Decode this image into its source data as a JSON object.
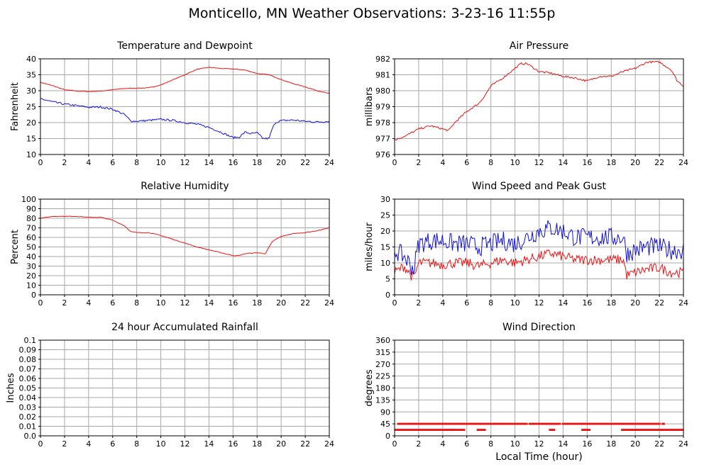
{
  "page": {
    "title": "Monticello, MN Weather Observations: 3-23-16 11:55p"
  },
  "colors": {
    "red": "#ee1111",
    "blue": "#1111dd",
    "grid": "#a8a8a8"
  },
  "chart_data": [
    {
      "id": "temp",
      "type": "line",
      "title": "Temperature and Dewpoint",
      "ylabel": "Fahrenheit",
      "xlabel": "",
      "xlim": [
        0,
        24
      ],
      "ylim": [
        10,
        40
      ],
      "xticks": [
        "0",
        "2",
        "4",
        "6",
        "8",
        "10",
        "12",
        "14",
        "16",
        "18",
        "20",
        "22",
        "24"
      ],
      "yticks": [
        "10",
        "15",
        "20",
        "25",
        "30",
        "35",
        "40"
      ],
      "grid": true,
      "series": [
        {
          "color": "red",
          "noise": 0.1,
          "x": [
            0,
            1,
            2,
            3,
            4,
            5,
            6,
            7,
            8,
            9,
            10,
            11,
            12,
            13,
            14,
            15,
            16,
            17,
            18,
            19,
            20,
            21,
            22,
            23,
            24
          ],
          "y": [
            32.6,
            31.6,
            30.3,
            29.9,
            29.7,
            29.9,
            30.3,
            30.7,
            30.8,
            30.9,
            31.8,
            33.4,
            35.0,
            36.7,
            37.3,
            37.0,
            36.8,
            36.5,
            35.4,
            35.0,
            33.5,
            32.2,
            31.2,
            30.0,
            29.1
          ]
        },
        {
          "color": "blue",
          "noise": 0.3,
          "x": [
            0,
            1,
            2,
            3,
            4,
            5,
            6,
            7,
            7.5,
            8,
            9,
            10,
            11,
            12,
            13,
            14,
            15,
            16,
            16.5,
            17,
            17.5,
            18,
            18.5,
            19,
            19.2,
            19.5,
            20,
            21,
            22,
            23,
            24
          ],
          "y": [
            27.5,
            26.5,
            25.8,
            25.3,
            24.8,
            24.9,
            24.2,
            22.5,
            20.5,
            20.4,
            20.7,
            21.0,
            20.7,
            20.0,
            19.5,
            18.5,
            17.0,
            15.3,
            15.4,
            17.0,
            16.5,
            16.8,
            15.0,
            15.0,
            17.5,
            20.0,
            20.6,
            20.8,
            20.4,
            20.2,
            20.4
          ]
        }
      ]
    },
    {
      "id": "pressure",
      "type": "line",
      "title": "Air Pressure",
      "ylabel": "millibars",
      "xlabel": "",
      "xlim": [
        0,
        24
      ],
      "ylim": [
        976,
        982
      ],
      "xticks": [
        "0",
        "2",
        "4",
        "6",
        "8",
        "10",
        "12",
        "14",
        "16",
        "18",
        "20",
        "22",
        "24"
      ],
      "yticks": [
        "976",
        "977",
        "978",
        "979",
        "980",
        "981",
        "982"
      ],
      "grid": true,
      "series": [
        {
          "color": "red",
          "noise": 0.06,
          "x": [
            0,
            1,
            2,
            3,
            4,
            4.5,
            5,
            6,
            7,
            7.5,
            8,
            9,
            10,
            10.5,
            11,
            12,
            13,
            14,
            15,
            16,
            17,
            18,
            19,
            20,
            21,
            22,
            23,
            23.5,
            24
          ],
          "y": [
            976.9,
            977.2,
            977.6,
            977.8,
            977.6,
            977.5,
            978.0,
            978.7,
            979.2,
            979.7,
            980.3,
            980.8,
            981.4,
            981.7,
            981.7,
            981.2,
            981.1,
            980.9,
            980.8,
            980.6,
            980.9,
            980.9,
            981.2,
            981.4,
            981.8,
            981.8,
            981.3,
            980.6,
            980.3
          ]
        }
      ]
    },
    {
      "id": "humidity",
      "type": "line",
      "title": "Relative Humidity",
      "ylabel": "Percent",
      "xlabel": "",
      "xlim": [
        0,
        24
      ],
      "ylim": [
        0,
        100
      ],
      "xticks": [
        "0",
        "2",
        "4",
        "6",
        "8",
        "10",
        "12",
        "14",
        "16",
        "18",
        "20",
        "22",
        "24"
      ],
      "yticks": [
        "0",
        "10",
        "20",
        "30",
        "40",
        "50",
        "60",
        "70",
        "80",
        "90",
        "100"
      ],
      "grid": true,
      "series": [
        {
          "color": "red",
          "noise": 0.3,
          "x": [
            0,
            1,
            2,
            3,
            4,
            5,
            6,
            7,
            7.5,
            8,
            9,
            10,
            11,
            12,
            13,
            14,
            15,
            16,
            16.5,
            17,
            18,
            18.7,
            19,
            19.3,
            20,
            21,
            22,
            23,
            24
          ],
          "y": [
            80,
            82,
            82,
            82,
            81,
            81,
            78,
            72,
            66,
            65,
            65,
            62,
            58,
            54,
            50,
            47,
            44,
            41,
            41,
            43,
            44,
            43,
            50,
            56,
            61,
            64,
            65,
            67,
            70
          ]
        }
      ]
    },
    {
      "id": "wind",
      "type": "line",
      "title": "Wind Speed and Peak Gust",
      "ylabel": "miles/hour",
      "xlabel": "",
      "xlim": [
        0,
        24
      ],
      "ylim": [
        0,
        30
      ],
      "xticks": [
        "0",
        "2",
        "4",
        "6",
        "8",
        "10",
        "12",
        "14",
        "16",
        "18",
        "20",
        "22",
        "24"
      ],
      "yticks": [
        "0",
        "5",
        "10",
        "15",
        "20",
        "25",
        "30"
      ],
      "grid": true,
      "series": [
        {
          "color": "red",
          "noise": 1.6,
          "x": [
            0,
            0.8,
            1.6,
            2,
            3,
            4,
            5,
            6,
            7,
            8,
            9,
            10,
            11,
            12,
            13,
            14,
            15,
            16,
            17,
            18,
            19,
            19.3,
            20,
            21,
            22,
            23,
            24
          ],
          "y": [
            7,
            9,
            5,
            10,
            10,
            9.5,
            10,
            10,
            9,
            10,
            11,
            10,
            11,
            12,
            13,
            12,
            11,
            11,
            11,
            11,
            11,
            6,
            7,
            8,
            8.5,
            7,
            7
          ]
        },
        {
          "color": "blue",
          "noise": 3.0,
          "x": [
            0,
            0.8,
            1.6,
            2,
            3,
            4,
            5,
            6,
            7,
            8,
            9,
            10,
            11,
            12,
            13,
            14,
            15,
            16,
            17,
            18,
            19,
            19.3,
            20,
            21,
            22,
            23,
            24
          ],
          "y": [
            14,
            12,
            8,
            16,
            17,
            17,
            16,
            16,
            15,
            16,
            17,
            16,
            18,
            20,
            21,
            20,
            18,
            18,
            18,
            18,
            18,
            13,
            14,
            15,
            15,
            14,
            14
          ]
        }
      ]
    },
    {
      "id": "rain",
      "type": "line",
      "title": "24 hour Accumulated Rainfall",
      "ylabel": "Inches",
      "xlabel": "",
      "xlim": [
        0,
        24
      ],
      "ylim": [
        0,
        0.1
      ],
      "xticks": [
        "0",
        "2",
        "4",
        "6",
        "8",
        "10",
        "12",
        "14",
        "16",
        "18",
        "20",
        "22",
        "24"
      ],
      "yticks": [
        "0.0",
        "0.01",
        "0.02",
        "0.03",
        "0.04",
        "0.05",
        "0.06",
        "0.07",
        "0.08",
        "0.09",
        "0.1"
      ],
      "grid": true,
      "series": [
        {
          "color": "red",
          "noise": 0,
          "x": [
            0,
            24
          ],
          "y": [
            0,
            0
          ]
        }
      ]
    },
    {
      "id": "direction",
      "type": "scatter",
      "title": "Wind Direction",
      "ylabel": "degrees",
      "xlabel": "Local Time (hour)",
      "xlim": [
        0,
        24
      ],
      "ylim": [
        0,
        360
      ],
      "xticks": [
        "0",
        "2",
        "4",
        "6",
        "8",
        "10",
        "12",
        "14",
        "16",
        "18",
        "20",
        "22",
        "24"
      ],
      "yticks": [
        "0",
        "45",
        "90",
        "135",
        "180",
        "225",
        "270",
        "315",
        "360"
      ],
      "grid": true,
      "series": [
        {
          "color": "red",
          "step_hours": 0.12,
          "segments": [
            {
              "from": 0.1,
              "to": 4.7,
              "y": 22.5,
              "alt_y": 45
            },
            {
              "from": 0.3,
              "to": 22.5,
              "y": 45
            },
            {
              "from": 4.7,
              "to": 5.9,
              "y": 22.5
            },
            {
              "from": 6.9,
              "to": 7.6,
              "y": 22.5
            },
            {
              "from": 12.9,
              "to": 13.3,
              "y": 22.5
            },
            {
              "from": 15.6,
              "to": 16.3,
              "y": 22.5
            },
            {
              "from": 18.9,
              "to": 24.0,
              "y": 22.5
            }
          ]
        }
      ]
    }
  ]
}
